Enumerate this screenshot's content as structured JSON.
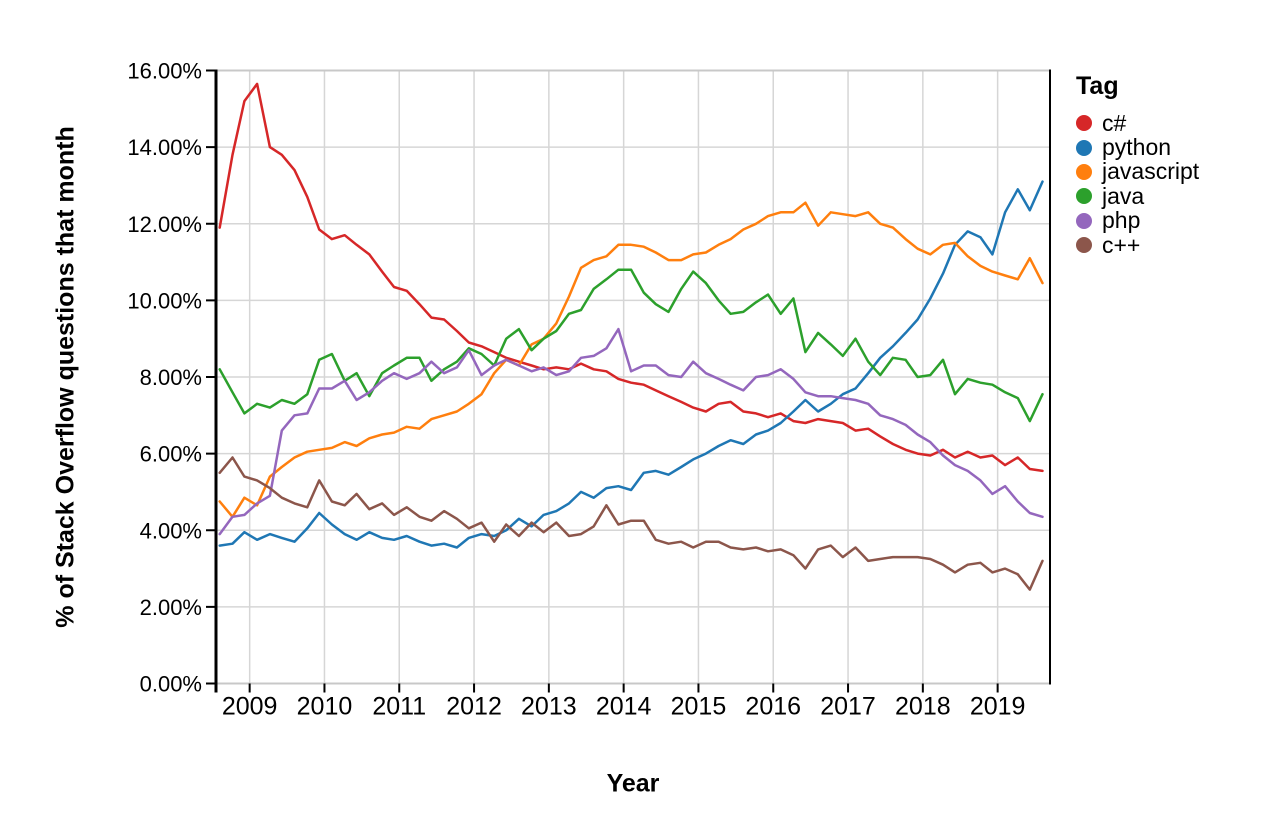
{
  "chart_data": {
    "type": "line",
    "title": "",
    "xlabel": "Year",
    "ylabel": "% of Stack Overflow questions that month",
    "legend_title": "Tag",
    "legend_position": "right",
    "grid": true,
    "background": "#ffffff",
    "grid_color": "#d6d6d6",
    "frame_color": "#c8c8c8",
    "axis_color": "#000000",
    "xlim": [
      2008.55,
      2019.7
    ],
    "ylim": [
      0,
      16
    ],
    "x_ticks": [
      2009,
      2010,
      2011,
      2012,
      2013,
      2014,
      2015,
      2016,
      2017,
      2018,
      2019
    ],
    "y_ticks": [
      {
        "value": 0,
        "label": "0.00%"
      },
      {
        "value": 2,
        "label": "2.00%"
      },
      {
        "value": 4,
        "label": "4.00%"
      },
      {
        "value": 6,
        "label": "6.00%"
      },
      {
        "value": 8,
        "label": "8.00%"
      },
      {
        "value": 10,
        "label": "10.00%"
      },
      {
        "value": 12,
        "label": "12.00%"
      },
      {
        "value": 14,
        "label": "14.00%"
      },
      {
        "value": 16,
        "label": "16.00%"
      }
    ],
    "x_unit": "decimal-year (monthly share of questions, Aug 2008 - Sep 2019)",
    "x": [
      2008.6,
      2008.77,
      2008.93,
      2009.1,
      2009.27,
      2009.43,
      2009.6,
      2009.77,
      2009.93,
      2010.1,
      2010.27,
      2010.43,
      2010.6,
      2010.77,
      2010.93,
      2011.1,
      2011.27,
      2011.43,
      2011.6,
      2011.77,
      2011.93,
      2012.1,
      2012.27,
      2012.43,
      2012.6,
      2012.77,
      2012.93,
      2013.1,
      2013.27,
      2013.43,
      2013.6,
      2013.77,
      2013.93,
      2014.1,
      2014.27,
      2014.43,
      2014.6,
      2014.77,
      2014.93,
      2015.1,
      2015.27,
      2015.43,
      2015.6,
      2015.77,
      2015.93,
      2016.1,
      2016.27,
      2016.43,
      2016.6,
      2016.77,
      2016.93,
      2017.1,
      2017.27,
      2017.43,
      2017.6,
      2017.77,
      2017.93,
      2018.1,
      2018.27,
      2018.43,
      2018.6,
      2018.77,
      2018.93,
      2019.1,
      2019.27,
      2019.43,
      2019.6
    ],
    "series": [
      {
        "name": "c#",
        "color": "#d62728",
        "values": [
          11.9,
          13.8,
          15.2,
          15.65,
          14.0,
          13.8,
          13.4,
          12.7,
          11.85,
          11.6,
          11.7,
          11.45,
          11.2,
          10.75,
          10.35,
          10.25,
          9.9,
          9.55,
          9.5,
          9.2,
          8.9,
          8.8,
          8.65,
          8.5,
          8.4,
          8.3,
          8.2,
          8.25,
          8.2,
          8.35,
          8.2,
          8.15,
          7.95,
          7.85,
          7.8,
          7.65,
          7.5,
          7.35,
          7.2,
          7.1,
          7.3,
          7.35,
          7.1,
          7.05,
          6.95,
          7.05,
          6.85,
          6.8,
          6.9,
          6.85,
          6.8,
          6.6,
          6.65,
          6.45,
          6.25,
          6.1,
          6.0,
          5.95,
          6.1,
          5.9,
          6.05,
          5.9,
          5.95,
          5.7,
          5.9,
          5.6,
          5.55
        ]
      },
      {
        "name": "python",
        "color": "#1f77b4",
        "values": [
          3.6,
          3.65,
          3.95,
          3.75,
          3.9,
          3.8,
          3.7,
          4.05,
          4.45,
          4.15,
          3.9,
          3.75,
          3.95,
          3.8,
          3.75,
          3.85,
          3.7,
          3.6,
          3.65,
          3.55,
          3.8,
          3.9,
          3.85,
          4.0,
          4.3,
          4.1,
          4.4,
          4.5,
          4.7,
          5.0,
          4.85,
          5.1,
          5.15,
          5.05,
          5.5,
          5.55,
          5.45,
          5.65,
          5.85,
          6.0,
          6.2,
          6.35,
          6.25,
          6.5,
          6.6,
          6.8,
          7.1,
          7.4,
          7.1,
          7.3,
          7.55,
          7.7,
          8.1,
          8.5,
          8.8,
          9.15,
          9.5,
          10.05,
          10.7,
          11.45,
          11.8,
          11.65,
          11.2,
          12.3,
          12.9,
          12.35,
          13.1
        ]
      },
      {
        "name": "javascript",
        "color": "#ff7f0e",
        "values": [
          4.75,
          4.35,
          4.85,
          4.65,
          5.4,
          5.65,
          5.9,
          6.05,
          6.1,
          6.15,
          6.3,
          6.2,
          6.4,
          6.5,
          6.55,
          6.7,
          6.65,
          6.9,
          7.0,
          7.1,
          7.3,
          7.55,
          8.1,
          8.45,
          8.3,
          8.85,
          9.0,
          9.4,
          10.1,
          10.85,
          11.05,
          11.15,
          11.45,
          11.45,
          11.4,
          11.25,
          11.05,
          11.05,
          11.2,
          11.25,
          11.45,
          11.6,
          11.85,
          12.0,
          12.2,
          12.3,
          12.3,
          12.55,
          11.95,
          12.3,
          12.25,
          12.2,
          12.3,
          12.0,
          11.9,
          11.6,
          11.35,
          11.2,
          11.45,
          11.5,
          11.15,
          10.9,
          10.75,
          10.65,
          10.55,
          11.1,
          10.45
        ]
      },
      {
        "name": "java",
        "color": "#2ca02c",
        "values": [
          8.2,
          7.6,
          7.05,
          7.3,
          7.2,
          7.4,
          7.3,
          7.55,
          8.45,
          8.6,
          7.9,
          8.1,
          7.5,
          8.1,
          8.3,
          8.5,
          8.5,
          7.9,
          8.2,
          8.4,
          8.75,
          8.6,
          8.3,
          9.0,
          9.25,
          8.7,
          9.0,
          9.2,
          9.65,
          9.75,
          10.3,
          10.55,
          10.8,
          10.8,
          10.2,
          9.9,
          9.7,
          10.3,
          10.75,
          10.45,
          10.0,
          9.65,
          9.7,
          9.95,
          10.15,
          9.65,
          10.05,
          8.65,
          9.15,
          8.85,
          8.55,
          9.0,
          8.4,
          8.05,
          8.5,
          8.45,
          8.0,
          8.05,
          8.45,
          7.55,
          7.95,
          7.85,
          7.8,
          7.6,
          7.45,
          6.85,
          7.55
        ]
      },
      {
        "name": "php",
        "color": "#9467bd",
        "values": [
          3.9,
          4.35,
          4.4,
          4.7,
          4.9,
          6.6,
          7.0,
          7.05,
          7.7,
          7.7,
          7.9,
          7.4,
          7.6,
          7.9,
          8.1,
          7.95,
          8.1,
          8.4,
          8.1,
          8.25,
          8.7,
          8.05,
          8.3,
          8.45,
          8.3,
          8.15,
          8.25,
          8.05,
          8.15,
          8.5,
          8.55,
          8.75,
          9.25,
          8.15,
          8.3,
          8.3,
          8.05,
          8.0,
          8.4,
          8.1,
          7.95,
          7.8,
          7.65,
          8.0,
          8.05,
          8.2,
          7.95,
          7.6,
          7.5,
          7.5,
          7.45,
          7.4,
          7.3,
          7.0,
          6.9,
          6.75,
          6.5,
          6.3,
          5.95,
          5.7,
          5.55,
          5.3,
          4.95,
          5.15,
          4.75,
          4.45,
          4.35
        ]
      },
      {
        "name": "c++",
        "color": "#8c564b",
        "values": [
          5.5,
          5.9,
          5.4,
          5.3,
          5.1,
          4.85,
          4.7,
          4.6,
          5.3,
          4.75,
          4.65,
          4.95,
          4.55,
          4.7,
          4.4,
          4.6,
          4.35,
          4.25,
          4.5,
          4.3,
          4.05,
          4.2,
          3.7,
          4.15,
          3.85,
          4.2,
          3.95,
          4.2,
          3.85,
          3.9,
          4.1,
          4.65,
          4.15,
          4.25,
          4.25,
          3.75,
          3.65,
          3.7,
          3.55,
          3.7,
          3.7,
          3.55,
          3.5,
          3.55,
          3.45,
          3.5,
          3.35,
          3.0,
          3.5,
          3.6,
          3.3,
          3.55,
          3.2,
          3.25,
          3.3,
          3.3,
          3.3,
          3.25,
          3.1,
          2.9,
          3.1,
          3.15,
          2.9,
          3.0,
          2.85,
          2.45,
          3.2
        ]
      }
    ]
  }
}
